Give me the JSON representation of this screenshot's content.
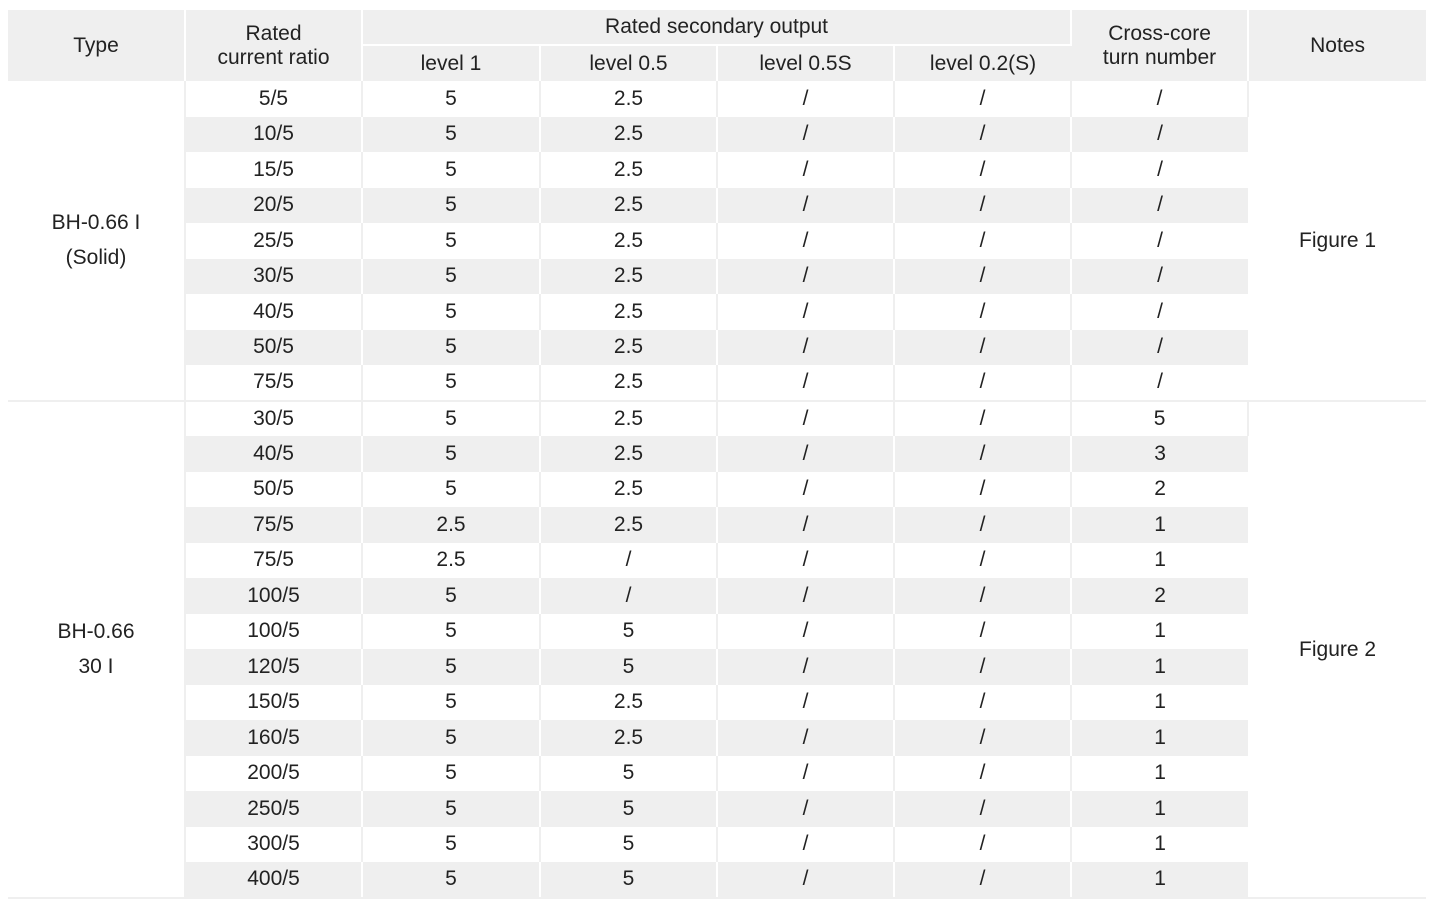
{
  "headers": {
    "type": "Type",
    "ratio": "Rated current ratio",
    "secondary_output": "Rated secondary output",
    "levels": [
      "level 1",
      "level 0.5",
      "level 0.5S",
      "level 0.2(S)"
    ],
    "cross_core": "Cross-core turn number",
    "notes": "Notes"
  },
  "groups": [
    {
      "type_lines": [
        "BH-0.66 I",
        "(Solid)"
      ],
      "note": "Figure 1",
      "rows": [
        [
          "5/5",
          "5",
          "2.5",
          "/",
          "/",
          "/"
        ],
        [
          "10/5",
          "5",
          "2.5",
          "/",
          "/",
          "/"
        ],
        [
          "15/5",
          "5",
          "2.5",
          "/",
          "/",
          "/"
        ],
        [
          "20/5",
          "5",
          "2.5",
          "/",
          "/",
          "/"
        ],
        [
          "25/5",
          "5",
          "2.5",
          "/",
          "/",
          "/"
        ],
        [
          "30/5",
          "5",
          "2.5",
          "/",
          "/",
          "/"
        ],
        [
          "40/5",
          "5",
          "2.5",
          "/",
          "/",
          "/"
        ],
        [
          "50/5",
          "5",
          "2.5",
          "/",
          "/",
          "/"
        ],
        [
          "75/5",
          "5",
          "2.5",
          "/",
          "/",
          "/"
        ]
      ]
    },
    {
      "type_lines": [
        "BH-0.66",
        "30 I"
      ],
      "note": "Figure 2",
      "rows": [
        [
          "30/5",
          "5",
          "2.5",
          "/",
          "/",
          "5"
        ],
        [
          "40/5",
          "5",
          "2.5",
          "/",
          "/",
          "3"
        ],
        [
          "50/5",
          "5",
          "2.5",
          "/",
          "/",
          "2"
        ],
        [
          "75/5",
          "2.5",
          "2.5",
          "/",
          "/",
          "1"
        ],
        [
          "75/5",
          "2.5",
          "/",
          "/",
          "/",
          "1"
        ],
        [
          "100/5",
          "5",
          "/",
          "/",
          "/",
          "2"
        ],
        [
          "100/5",
          "5",
          "5",
          "/",
          "/",
          "1"
        ],
        [
          "120/5",
          "5",
          "5",
          "/",
          "/",
          "1"
        ],
        [
          "150/5",
          "5",
          "2.5",
          "/",
          "/",
          "1"
        ],
        [
          "160/5",
          "5",
          "2.5",
          "/",
          "/",
          "1"
        ],
        [
          "200/5",
          "5",
          "5",
          "/",
          "/",
          "1"
        ],
        [
          "250/5",
          "5",
          "5",
          "/",
          "/",
          "1"
        ],
        [
          "300/5",
          "5",
          "5",
          "/",
          "/",
          "1"
        ],
        [
          "400/5",
          "5",
          "5",
          "/",
          "/",
          "1"
        ]
      ]
    }
  ]
}
